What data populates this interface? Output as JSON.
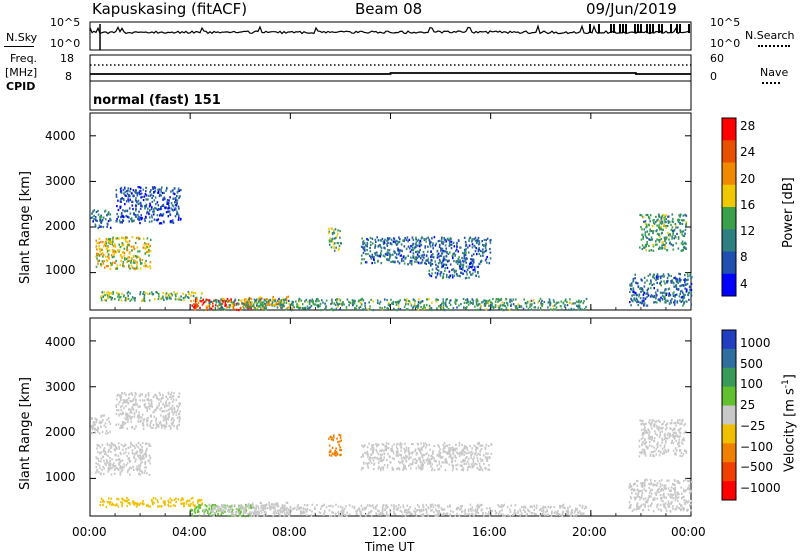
{
  "header": {
    "title": "Kapuskasing (fitACF)",
    "beam": "Beam 08",
    "date": "09/Jun/2019"
  },
  "side_labels": {
    "nsky": "N.Sky",
    "nsearch": "N.Search",
    "freq": "Freq.",
    "freq_unit": "[MHz]",
    "cpid": "CPID",
    "nave": "Nave",
    "mode": "normal (fast) 151"
  },
  "noise_axis": {
    "left_top": "10^5",
    "left_bottom": "10^0",
    "right_top": "10^5",
    "right_bottom": "10^0"
  },
  "freq_axis": {
    "left_top": "18",
    "left_bottom": "8",
    "right_top": "60",
    "right_bottom": "0"
  },
  "x_axis": {
    "label": "Time UT",
    "ticks": [
      "00:00",
      "04:00",
      "08:00",
      "12:00",
      "16:00",
      "20:00",
      "00:00"
    ]
  },
  "range_axis": {
    "label": "Slant Range [km]",
    "ticks": [
      "1000",
      "2000",
      "3000",
      "4000"
    ]
  },
  "power_scale": {
    "label": "Power [dB]",
    "ticks": [
      "4",
      "8",
      "12",
      "16",
      "20",
      "24",
      "28"
    ],
    "colors": [
      "#0000ff",
      "#1f4fb0",
      "#2f7f80",
      "#3aa04a",
      "#f0c800",
      "#f08800",
      "#e85000",
      "#ff0000"
    ]
  },
  "velocity_scale": {
    "label": "Velocity [m s",
    "label_sup": "-1",
    "label_end": "]",
    "ticks": [
      "1000",
      "500",
      "100",
      "25",
      "−25",
      "−100",
      "−500",
      "−1000"
    ],
    "colors": [
      "#1f3fc0",
      "#2f6fa0",
      "#3a9a5a",
      "#60c030",
      "#c8c8c8",
      "#f0c000",
      "#f08000",
      "#f04000",
      "#ff0000"
    ]
  },
  "chart_data": [
    {
      "type": "heatmap",
      "title": "Power",
      "xlabel": "Time UT",
      "ylabel": "Slant Range [km]",
      "xlim": [
        "00:00",
        "24:00"
      ],
      "ylim": [
        180,
        4500
      ],
      "colorbar": {
        "label": "Power [dB]",
        "ticks": [
          4,
          8,
          12,
          16,
          20,
          24,
          28
        ]
      },
      "regions": [
        {
          "t": [
            0.2,
            2.4
          ],
          "r": [
            1100,
            1800
          ],
          "value": 18
        },
        {
          "t": [
            0.0,
            0.8
          ],
          "r": [
            2000,
            2400
          ],
          "value": 8
        },
        {
          "t": [
            1.0,
            3.6
          ],
          "r": [
            2100,
            2900
          ],
          "value": 6
        },
        {
          "t": [
            0.3,
            4.5
          ],
          "r": [
            400,
            600
          ],
          "value": 14
        },
        {
          "t": [
            4.0,
            6.5
          ],
          "r": [
            200,
            450
          ],
          "value": 28
        },
        {
          "t": [
            6.0,
            8.0
          ],
          "r": [
            250,
            500
          ],
          "value": 20
        },
        {
          "t": [
            4.5,
            19.8
          ],
          "r": [
            200,
            450
          ],
          "value": 12
        },
        {
          "t": [
            9.5,
            10.0
          ],
          "r": [
            1500,
            2000
          ],
          "value": 14
        },
        {
          "t": [
            10.8,
            12.0
          ],
          "r": [
            1200,
            1800
          ],
          "value": 8
        },
        {
          "t": [
            12.0,
            16.0
          ],
          "r": [
            1200,
            1800
          ],
          "value": 8
        },
        {
          "t": [
            13.5,
            15.5
          ],
          "r": [
            900,
            1200
          ],
          "value": 8
        },
        {
          "t": [
            21.9,
            23.8
          ],
          "r": [
            1500,
            2300
          ],
          "value": 12
        },
        {
          "t": [
            21.5,
            24.0
          ],
          "r": [
            300,
            1000
          ],
          "value": 8
        }
      ]
    },
    {
      "type": "heatmap",
      "title": "Velocity",
      "xlabel": "Time UT",
      "ylabel": "Slant Range [km]",
      "xlim": [
        "00:00",
        "24:00"
      ],
      "ylim": [
        180,
        4500
      ],
      "colorbar": {
        "label": "Velocity [m s-1]",
        "ticks": [
          1000,
          500,
          100,
          25,
          -25,
          -100,
          -500,
          -1000
        ]
      },
      "regions": [
        {
          "t": [
            0.2,
            2.4
          ],
          "r": [
            1100,
            1800
          ],
          "value": 0
        },
        {
          "t": [
            0.0,
            0.8
          ],
          "r": [
            2000,
            2400
          ],
          "value": 0
        },
        {
          "t": [
            1.0,
            3.6
          ],
          "r": [
            2100,
            2900
          ],
          "value": 0
        },
        {
          "t": [
            0.3,
            4.5
          ],
          "r": [
            400,
            600
          ],
          "value": -50
        },
        {
          "t": [
            4.0,
            6.5
          ],
          "r": [
            200,
            450
          ],
          "value": 60
        },
        {
          "t": [
            6.0,
            8.0
          ],
          "r": [
            250,
            500
          ],
          "value": 0
        },
        {
          "t": [
            4.5,
            19.8
          ],
          "r": [
            200,
            450
          ],
          "value": 0
        },
        {
          "t": [
            9.5,
            10.0
          ],
          "r": [
            1500,
            2000
          ],
          "value": -300
        },
        {
          "t": [
            10.8,
            16.0
          ],
          "r": [
            1200,
            1800
          ],
          "value": 0
        },
        {
          "t": [
            21.9,
            23.8
          ],
          "r": [
            1500,
            2300
          ],
          "value": 0
        },
        {
          "t": [
            21.5,
            24.0
          ],
          "r": [
            300,
            1000
          ],
          "value": 0
        }
      ]
    }
  ]
}
